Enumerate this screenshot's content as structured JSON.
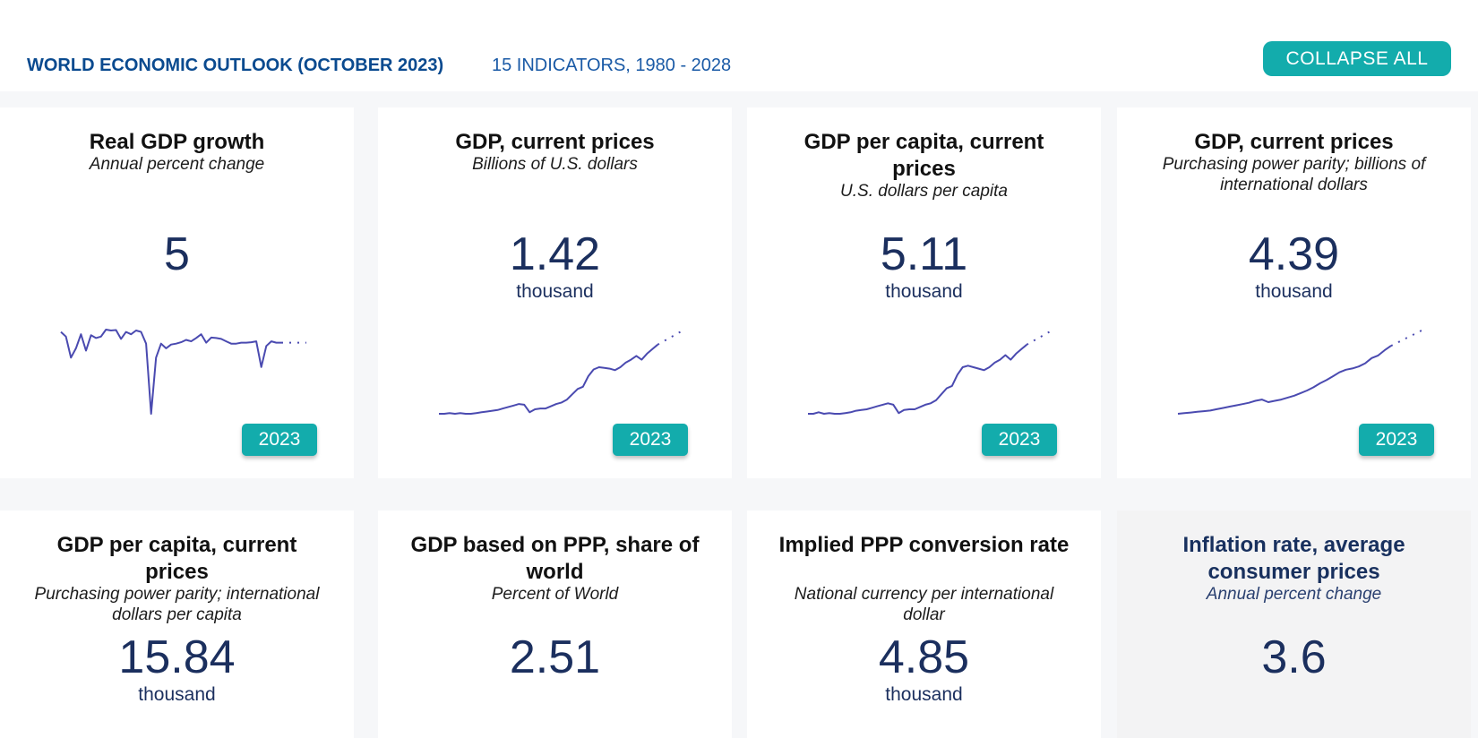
{
  "header": {
    "title": "WORLD ECONOMIC OUTLOOK (OCTOBER 2023)",
    "subtitle": "15 INDICATORS, 1980 - 2028",
    "collapse_label": "COLLAPSE ALL"
  },
  "colors": {
    "accent": "#13acac",
    "title_blue": "#0a4a8f",
    "value_navy": "#1b2f5e",
    "sparkline": "#4a4ab0"
  },
  "cards": [
    {
      "title": "Real GDP growth",
      "unit": "Annual percent change",
      "value": "5",
      "scale": "",
      "year": "2023",
      "spark": [
        0.95,
        0.85,
        0.4,
        0.6,
        0.9,
        0.55,
        0.88,
        0.82,
        0.85,
        1.0,
        0.98,
        0.99,
        0.8,
        0.95,
        0.9,
        0.98,
        0.95,
        0.7,
        -0.8,
        0.4,
        0.7,
        0.6,
        0.68,
        0.7,
        0.73,
        0.78,
        0.75,
        0.82,
        0.9,
        0.72,
        0.83,
        0.82,
        0.8,
        0.75,
        0.7,
        0.7,
        0.72,
        0.72,
        0.73,
        0.75,
        0.2,
        0.65,
        0.75,
        0.72,
        0.72
      ],
      "proj": [
        0.72,
        0.72,
        0.72,
        0.72,
        0.72,
        0.72
      ]
    },
    {
      "title": "GDP, current prices",
      "unit": "Billions of U.S. dollars",
      "value": "1.42",
      "scale": "thousand",
      "year": "2023",
      "spark": [
        0.0,
        0.0,
        0.01,
        0.0,
        0.01,
        0.0,
        0.0,
        0.01,
        0.02,
        0.03,
        0.04,
        0.05,
        0.07,
        0.09,
        0.11,
        0.13,
        0.12,
        0.02,
        0.06,
        0.07,
        0.07,
        0.1,
        0.13,
        0.15,
        0.19,
        0.26,
        0.33,
        0.36,
        0.5,
        0.59,
        0.62,
        0.61,
        0.6,
        0.58,
        0.62,
        0.68,
        0.72,
        0.77,
        0.72,
        0.8,
        0.86,
        0.92
      ],
      "proj": [
        0.92,
        0.96,
        1.0,
        1.04,
        1.08,
        1.12
      ]
    },
    {
      "title": "GDP per capita, current prices",
      "unit": "U.S. dollars per capita",
      "value": "5.11",
      "scale": "thousand",
      "year": "2023",
      "spark": [
        0.0,
        0.0,
        0.02,
        0.0,
        0.01,
        0.0,
        0.0,
        0.01,
        0.02,
        0.04,
        0.05,
        0.06,
        0.08,
        0.1,
        0.12,
        0.14,
        0.12,
        0.01,
        0.05,
        0.06,
        0.06,
        0.09,
        0.12,
        0.14,
        0.18,
        0.26,
        0.34,
        0.37,
        0.52,
        0.62,
        0.64,
        0.62,
        0.6,
        0.58,
        0.62,
        0.68,
        0.72,
        0.78,
        0.72,
        0.8,
        0.86,
        0.92
      ],
      "proj": [
        0.92,
        0.96,
        1.0,
        1.04,
        1.08,
        1.12
      ]
    },
    {
      "title": "GDP, current prices",
      "unit": "Purchasing power parity; billions of international dollars",
      "value": "4.39",
      "scale": "thousand",
      "year": "2023",
      "spark": [
        0.0,
        0.01,
        0.02,
        0.03,
        0.04,
        0.05,
        0.07,
        0.09,
        0.11,
        0.13,
        0.15,
        0.17,
        0.2,
        0.22,
        0.18,
        0.2,
        0.22,
        0.25,
        0.28,
        0.32,
        0.36,
        0.41,
        0.47,
        0.52,
        0.58,
        0.64,
        0.68,
        0.7,
        0.73,
        0.78,
        0.86,
        0.9,
        0.98,
        1.05
      ],
      "proj": [
        1.05,
        1.1,
        1.15,
        1.2,
        1.25,
        1.3
      ]
    },
    {
      "title": "GDP per capita, current prices",
      "unit": "Purchasing power parity; international dollars per capita",
      "value": "15.84",
      "scale": "thousand",
      "year": "",
      "spark": [],
      "proj": []
    },
    {
      "title": "GDP based on PPP, share of world",
      "unit": "Percent of World",
      "value": "2.51",
      "scale": "",
      "year": "",
      "spark": [],
      "proj": []
    },
    {
      "title": "Implied PPP conversion rate",
      "unit": "National currency per international dollar",
      "value": "4.85",
      "scale": "thousand",
      "year": "",
      "spark": [],
      "proj": []
    },
    {
      "title": "Inflation rate, average consumer prices",
      "unit": "Annual percent change",
      "value": "3.6",
      "scale": "",
      "year": "",
      "spark": [],
      "proj": []
    }
  ]
}
